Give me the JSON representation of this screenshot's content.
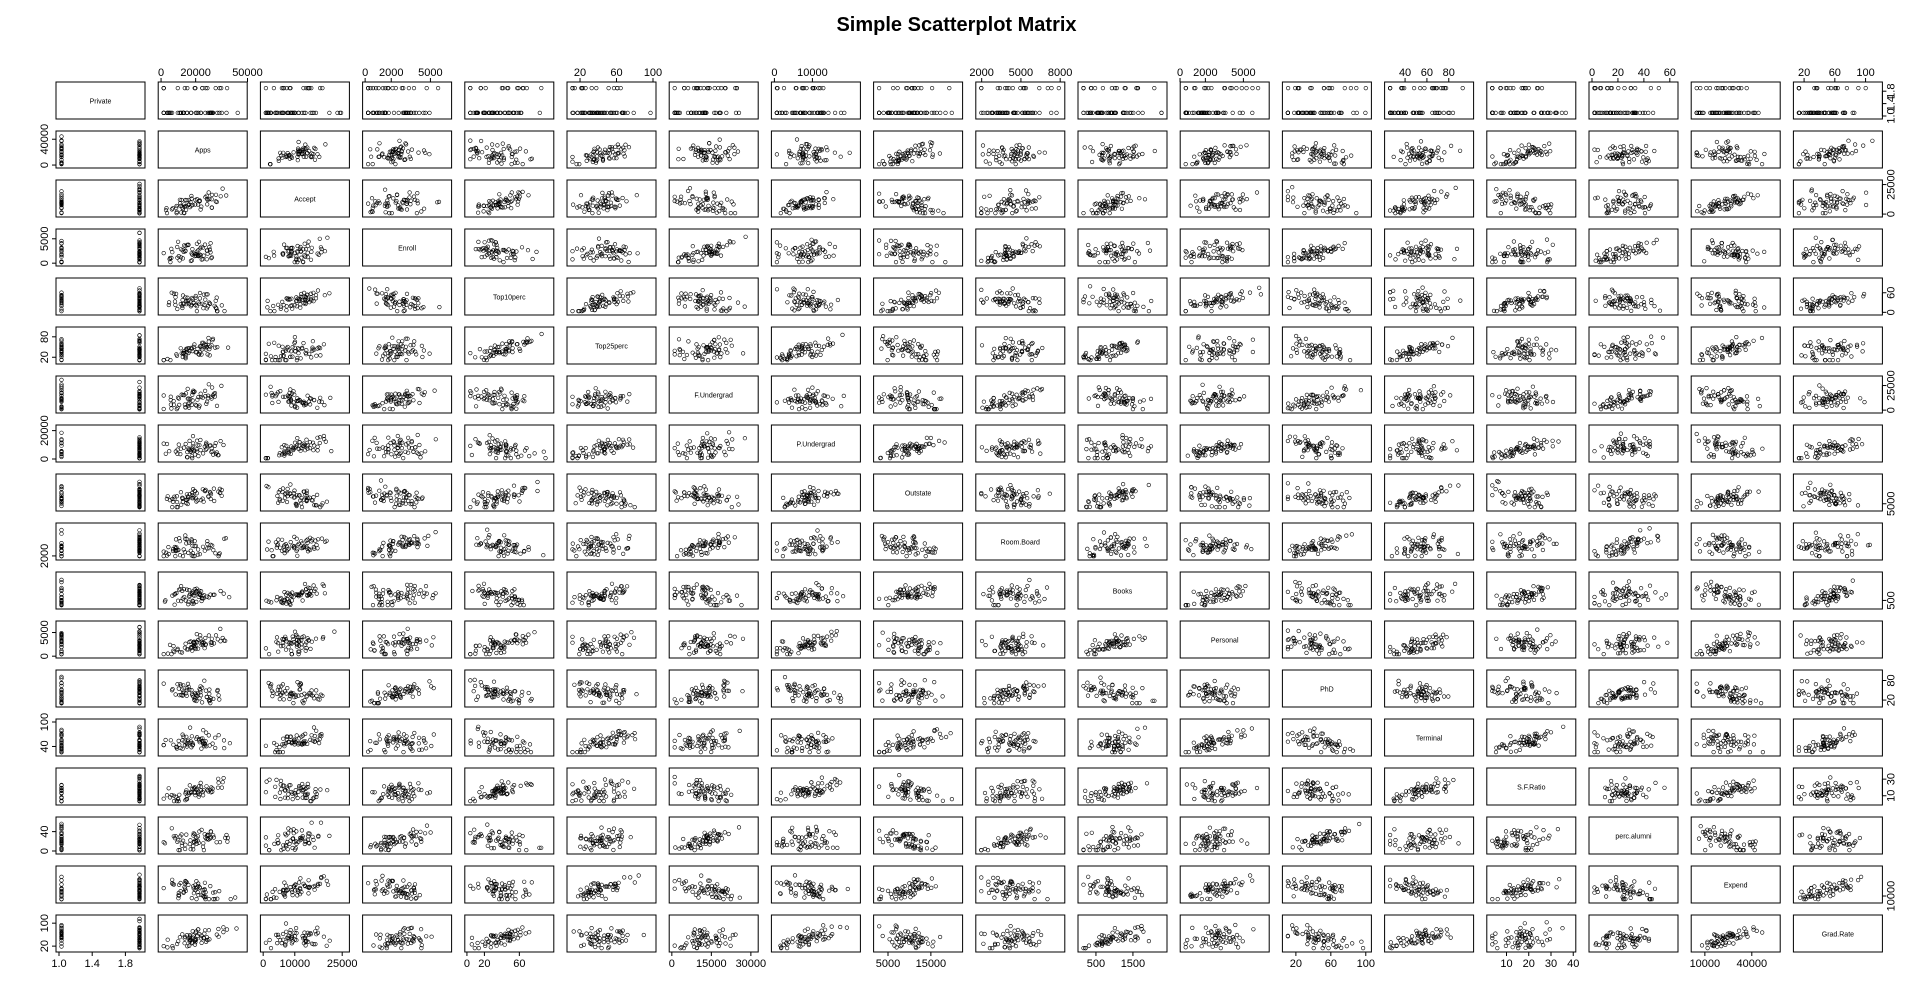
{
  "chart_data": {
    "type": "scatter",
    "subtype": "scatterplot-matrix",
    "title": "Simple Scatterplot Matrix",
    "variables": [
      "Private",
      "Apps",
      "Accept",
      "Enroll",
      "Top10perc",
      "Top25perc",
      "F.Undergrad",
      "P.Undergrad",
      "Outstate",
      "Room.Board",
      "Books",
      "Personal",
      "PhD",
      "Terminal",
      "S.F.Ratio",
      "perc.alumni",
      "Expend",
      "Grad.Rate"
    ],
    "ranges": [
      [
        1,
        2
      ],
      [
        81,
        48094
      ],
      [
        72,
        26330
      ],
      [
        35,
        6392
      ],
      [
        1,
        96
      ],
      [
        9,
        100
      ],
      [
        139,
        31643
      ],
      [
        1,
        21836
      ],
      [
        2340,
        21700
      ],
      [
        1780,
        8124
      ],
      [
        96,
        2340
      ],
      [
        250,
        6800
      ],
      [
        8,
        103
      ],
      [
        24,
        100
      ],
      [
        2.5,
        39.8
      ],
      [
        0,
        64
      ],
      [
        3186,
        56233
      ],
      [
        10,
        118
      ]
    ],
    "top_axis_ticks": [
      {
        "panel": 1,
        "values": [
          0,
          20000,
          50000
        ],
        "labels": [
          "0",
          "20000",
          "50000"
        ]
      },
      {
        "panel": 3,
        "values": [
          0,
          2000,
          5000
        ],
        "labels": [
          "0",
          "2000",
          "5000"
        ]
      },
      {
        "panel": 5,
        "values": [
          20,
          60,
          100
        ],
        "labels": [
          "20",
          "60",
          "100"
        ]
      },
      {
        "panel": 7,
        "values": [
          0,
          10000
        ],
        "labels": [
          "0",
          "10000"
        ]
      },
      {
        "panel": 9,
        "values": [
          2000,
          5000,
          8000
        ],
        "labels": [
          "2000",
          "5000",
          "8000"
        ]
      },
      {
        "panel": 11,
        "values": [
          0,
          2000,
          5000
        ],
        "labels": [
          "0",
          "2000",
          "5000"
        ]
      },
      {
        "panel": 13,
        "values": [
          40,
          60,
          80
        ],
        "labels": [
          "40",
          "60",
          "80"
        ]
      },
      {
        "panel": 15,
        "values": [
          0,
          20,
          40,
          60
        ],
        "labels": [
          "0",
          "20",
          "40",
          "60"
        ]
      },
      {
        "panel": 17,
        "values": [
          20,
          60,
          100
        ],
        "labels": [
          "20",
          "60",
          "100"
        ]
      }
    ],
    "bottom_axis_ticks": [
      {
        "panel": 0,
        "values": [
          1.0,
          1.4,
          1.8
        ],
        "labels": [
          "1.0",
          "1.4",
          "1.8"
        ]
      },
      {
        "panel": 2,
        "values": [
          0,
          10000,
          25000
        ],
        "labels": [
          "0",
          "10000",
          "25000"
        ]
      },
      {
        "panel": 4,
        "values": [
          0,
          20,
          60
        ],
        "labels": [
          "0",
          "20",
          "60"
        ]
      },
      {
        "panel": 6,
        "values": [
          0,
          15000,
          30000
        ],
        "labels": [
          "0",
          "15000",
          "30000"
        ]
      },
      {
        "panel": 8,
        "values": [
          5000,
          15000
        ],
        "labels": [
          "5000",
          "15000"
        ]
      },
      {
        "panel": 10,
        "values": [
          500,
          1500
        ],
        "labels": [
          "500",
          "1500"
        ]
      },
      {
        "panel": 12,
        "values": [
          20,
          60,
          100
        ],
        "labels": [
          "20",
          "60",
          "100"
        ]
      },
      {
        "panel": 14,
        "values": [
          10,
          20,
          30,
          40
        ],
        "labels": [
          "10",
          "20",
          "30",
          "40"
        ]
      },
      {
        "panel": 16,
        "values": [
          10000,
          40000
        ],
        "labels": [
          "10000",
          "40000"
        ]
      }
    ],
    "left_axis_ticks": [
      {
        "panel": 1,
        "values": [
          0,
          40000
        ],
        "labels": [
          "0",
          "40000"
        ]
      },
      {
        "panel": 3,
        "values": [
          0,
          5000
        ],
        "labels": [
          "0",
          "5000"
        ]
      },
      {
        "panel": 5,
        "values": [
          20,
          80
        ],
        "labels": [
          "20",
          "80"
        ]
      },
      {
        "panel": 7,
        "values": [
          0,
          20000
        ],
        "labels": [
          "0",
          "20000"
        ]
      },
      {
        "panel": 9,
        "values": [
          2000
        ],
        "labels": [
          "2000"
        ]
      },
      {
        "panel": 11,
        "values": [
          0,
          5000
        ],
        "labels": [
          "0",
          "5000"
        ]
      },
      {
        "panel": 13,
        "values": [
          40,
          100
        ],
        "labels": [
          "40",
          "100"
        ]
      },
      {
        "panel": 15,
        "values": [
          0,
          40
        ],
        "labels": [
          "0",
          "40"
        ]
      },
      {
        "panel": 17,
        "values": [
          20,
          100
        ],
        "labels": [
          "20",
          "100"
        ]
      }
    ],
    "right_axis_ticks": [
      {
        "panel": 0,
        "values": [
          1.0,
          1.4,
          1.8
        ],
        "labels": [
          "1.0",
          "1.4",
          "1.8"
        ]
      },
      {
        "panel": 2,
        "values": [
          0,
          25000
        ],
        "labels": [
          "0",
          "25000"
        ]
      },
      {
        "panel": 4,
        "values": [
          0,
          60
        ],
        "labels": [
          "0",
          "60"
        ]
      },
      {
        "panel": 6,
        "values": [
          0,
          25000
        ],
        "labels": [
          "0",
          "25000"
        ]
      },
      {
        "panel": 8,
        "values": [
          5000
        ],
        "labels": [
          "5000"
        ]
      },
      {
        "panel": 10,
        "values": [
          500
        ],
        "labels": [
          "500"
        ]
      },
      {
        "panel": 12,
        "values": [
          20,
          80
        ],
        "labels": [
          "20",
          "80"
        ]
      },
      {
        "panel": 14,
        "values": [
          10,
          30
        ],
        "labels": [
          "10",
          "30"
        ]
      },
      {
        "panel": 16,
        "values": [
          10000
        ],
        "labels": [
          "10000"
        ]
      }
    ],
    "marker": "open-circle",
    "grid": false,
    "legend": false
  }
}
